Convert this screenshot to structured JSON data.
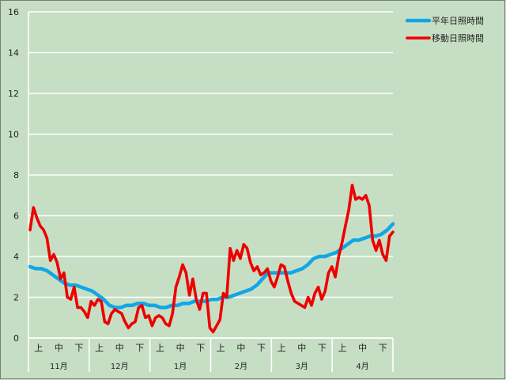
{
  "chart_data": {
    "type": "line",
    "title": "",
    "xlabel": "",
    "ylabel": "",
    "ylim": [
      0,
      16
    ],
    "y_ticks": [
      0,
      2,
      4,
      6,
      8,
      10,
      12,
      14,
      16
    ],
    "grid": true,
    "legend_position": "top-right",
    "x_sub_labels": [
      "上",
      "中",
      "下",
      "上",
      "中",
      "下",
      "上",
      "中",
      "下",
      "上",
      "中",
      "下",
      "上",
      "中",
      "下",
      "上",
      "中",
      "下"
    ],
    "months": [
      "11月",
      "12月",
      "1月",
      "2月",
      "3月",
      "4月"
    ],
    "series": [
      {
        "name": "平年日照時間",
        "color": "#12a6e6",
        "values": [
          3.5,
          3.4,
          3.4,
          3.3,
          3.1,
          2.9,
          2.7,
          2.6,
          2.6,
          2.5,
          2.4,
          2.3,
          2.1,
          1.9,
          1.6,
          1.5,
          1.5,
          1.6,
          1.6,
          1.7,
          1.7,
          1.6,
          1.6,
          1.5,
          1.5,
          1.6,
          1.6,
          1.7,
          1.7,
          1.8,
          1.8,
          1.8,
          1.9,
          1.9,
          2.0,
          2.0,
          2.1,
          2.2,
          2.3,
          2.4,
          2.6,
          2.9,
          3.2,
          3.2,
          3.2,
          3.2,
          3.2,
          3.3,
          3.4,
          3.6,
          3.9,
          4.0,
          4.0,
          4.1,
          4.2,
          4.4,
          4.6,
          4.8,
          4.8,
          4.9,
          5.0,
          5.0,
          5.1,
          5.3,
          5.6
        ]
      },
      {
        "name": "移動日照時間",
        "color": "#ee0000",
        "values": [
          5.3,
          6.4,
          5.9,
          5.5,
          5.3,
          4.9,
          3.8,
          4.1,
          3.7,
          2.9,
          3.2,
          2.0,
          1.9,
          2.5,
          1.5,
          1.5,
          1.3,
          1.0,
          1.8,
          1.6,
          1.9,
          1.8,
          0.8,
          0.7,
          1.2,
          1.4,
          1.3,
          1.2,
          0.8,
          0.5,
          0.7,
          0.8,
          1.5,
          1.6,
          1.0,
          1.1,
          0.6,
          1.0,
          1.1,
          1.0,
          0.7,
          0.6,
          1.2,
          2.5,
          3.0,
          3.6,
          3.2,
          2.1,
          2.9,
          1.9,
          1.4,
          2.2,
          2.2,
          0.5,
          0.3,
          0.6,
          0.9,
          2.2,
          2.0,
          4.4,
          3.8,
          4.3,
          3.9,
          4.6,
          4.4,
          3.7,
          3.3,
          3.5,
          3.1,
          3.2,
          3.4,
          2.8,
          2.5,
          3.0,
          3.6,
          3.5,
          2.8,
          2.2,
          1.8,
          1.7,
          1.6,
          1.5,
          2.0,
          1.6,
          2.2,
          2.5,
          1.9,
          2.3,
          3.2,
          3.5,
          3.0,
          4.0,
          4.7,
          5.5,
          6.3,
          7.5,
          6.8,
          6.9,
          6.8,
          7.0,
          6.5,
          4.8,
          4.3,
          4.8,
          4.1,
          3.8,
          5.0,
          5.2
        ]
      }
    ]
  }
}
